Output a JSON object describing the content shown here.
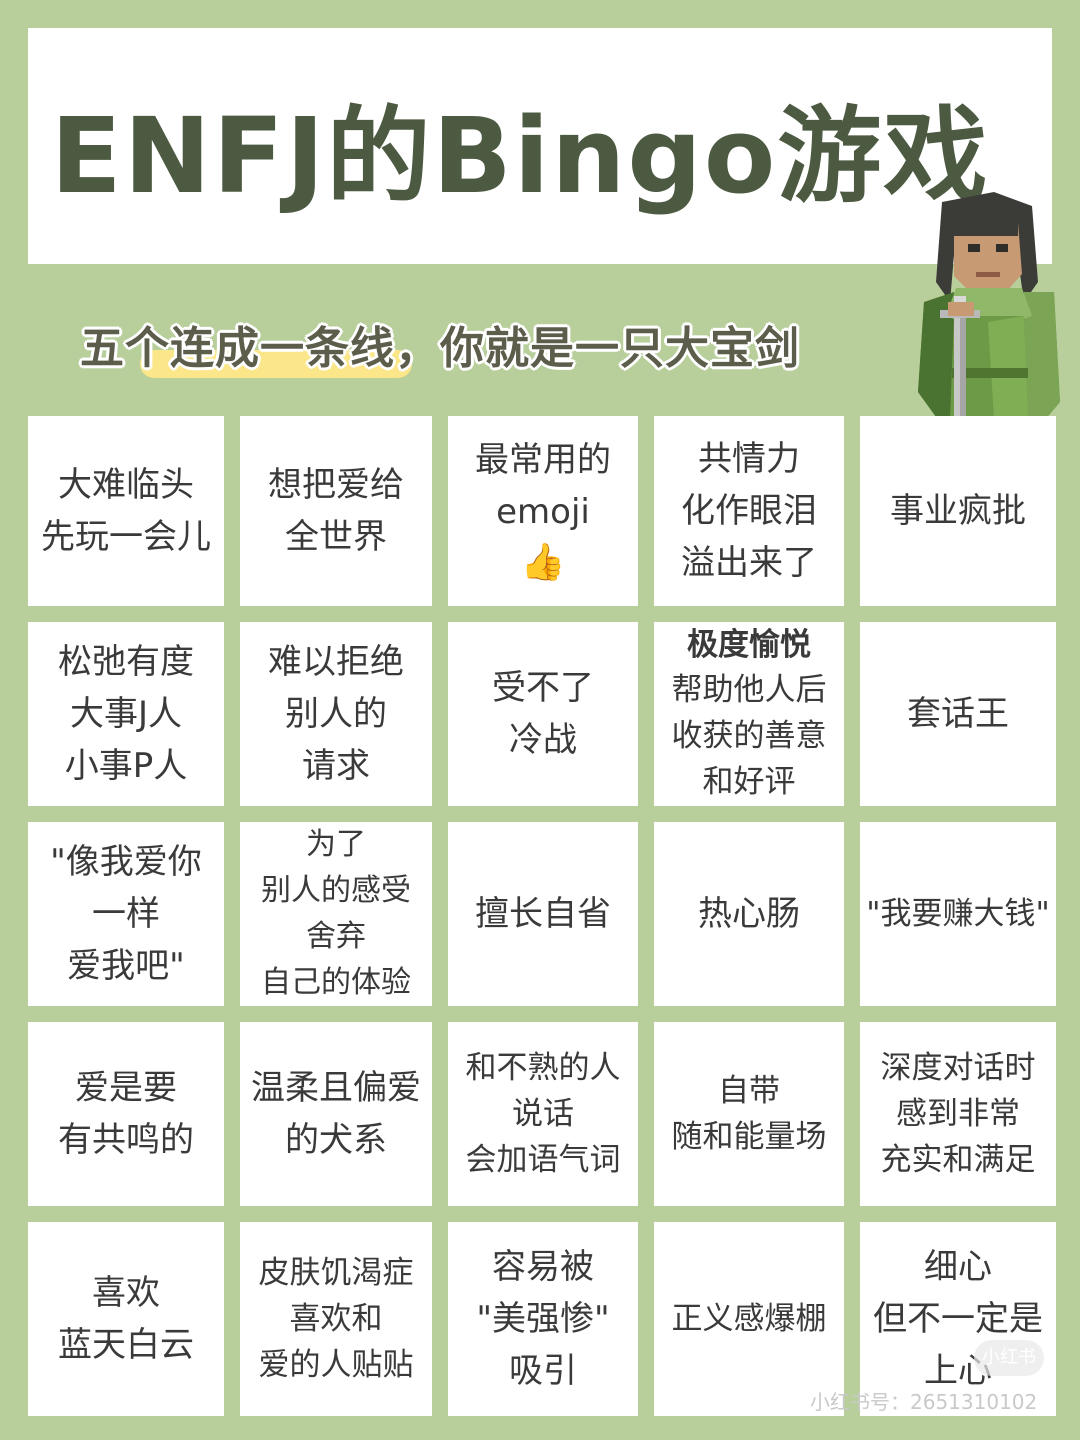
{
  "title": "ENFJ的Bingo游戏",
  "subtitle": "五个连成一条线，你就是一只大宝剑",
  "cells": [
    [
      "大难临头",
      "先玩一会儿"
    ],
    [
      "想把爱给",
      "全世界"
    ],
    [
      "最常用的",
      "emoji",
      "👍"
    ],
    [
      "共情力",
      "化作眼泪",
      "溢出来了"
    ],
    [
      "事业疯批"
    ],
    [
      "松弛有度",
      "大事J人",
      "小事P人"
    ],
    [
      "难以拒绝",
      "别人的",
      "请求"
    ],
    [
      "受不了",
      "冷战"
    ],
    [
      "极度愉悦",
      "帮助他人后",
      "收获的善意",
      "和好评"
    ],
    [
      "套话王"
    ],
    [
      "\"像我爱你",
      "一样",
      "爱我吧\""
    ],
    [
      "为了",
      "别人的感受",
      "舍弃",
      "自己的体验"
    ],
    [
      "擅长自省"
    ],
    [
      "热心肠"
    ],
    [
      "\"我要赚大钱\""
    ],
    [
      "爱是要",
      "有共鸣的"
    ],
    [
      "温柔且偏爱",
      "的犬系"
    ],
    [
      "和不熟的人",
      "说话",
      "会加语气词"
    ],
    [
      "自带",
      "随和能量场"
    ],
    [
      "深度对话时",
      "感到非常",
      "充实和满足"
    ],
    [
      "喜欢",
      "蓝天白云"
    ],
    [
      "皮肤饥渴症",
      "喜欢和",
      "爱的人贴贴"
    ],
    [
      "容易被",
      "\"美强惨\"",
      "吸引"
    ],
    [
      "正义感爆棚"
    ],
    [
      "细心",
      "但不一定是",
      "上心"
    ]
  ],
  "watermark": "小红书号：2651310102",
  "watermark_badge": "小红书",
  "colors": {
    "background": "#b8cf9c",
    "title": "#4d5a42",
    "highlight": "#fbe68a"
  },
  "icons": {
    "character": "pixel-warrior-with-sword",
    "thumbs_up": "thumbs-up-emoji"
  }
}
